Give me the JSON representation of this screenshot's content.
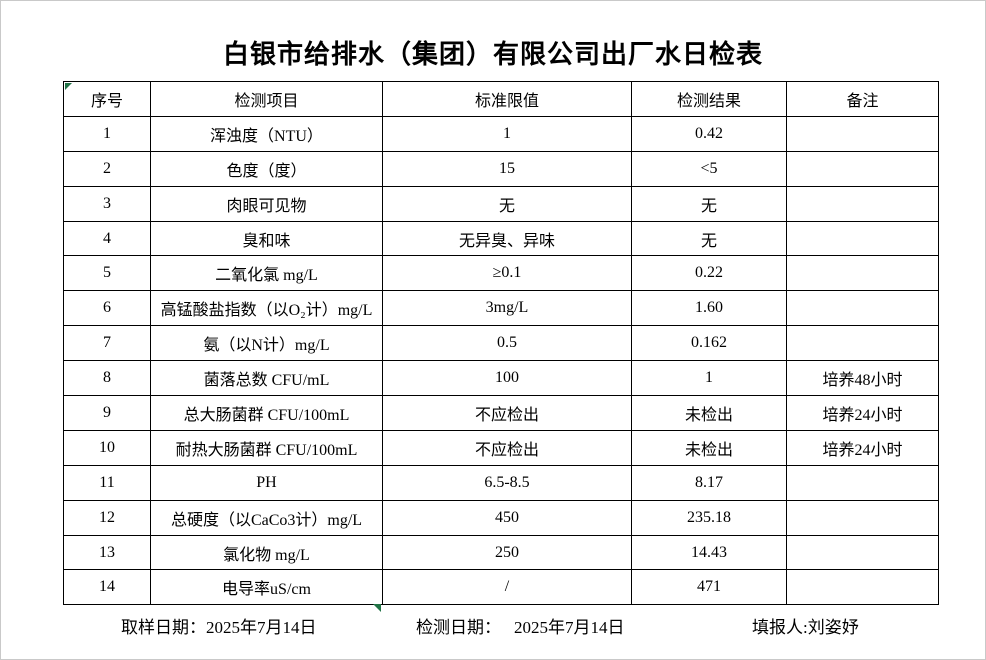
{
  "page": {
    "title": "白银市给排水（集团）有限公司出厂水日检表"
  },
  "colors": {
    "marker_green": "#217346",
    "table_border": "#000000",
    "background": "#ffffff"
  },
  "table": {
    "headers": [
      "序号",
      "检测项目",
      "标准限值",
      "检测结果",
      "备注"
    ],
    "rows": [
      {
        "no": "1",
        "item": "浑浊度（NTU）",
        "limit": "1",
        "result": "0.42",
        "remark": ""
      },
      {
        "no": "2",
        "item": "色度（度）",
        "limit": "15",
        "result": "<5",
        "remark": ""
      },
      {
        "no": "3",
        "item": "肉眼可见物",
        "limit": "无",
        "result": "无",
        "remark": ""
      },
      {
        "no": "4",
        "item": "臭和味",
        "limit": "无异臭、异味",
        "result": "无",
        "remark": ""
      },
      {
        "no": "5",
        "item": "二氧化氯 mg/L",
        "limit": "≥0.1",
        "result": "0.22",
        "remark": ""
      },
      {
        "no": "6",
        "item": "高锰酸盐指数（以O₂计）mg/L",
        "limit": "3mg/L",
        "result": "1.60",
        "remark": ""
      },
      {
        "no": "7",
        "item": "氨（以N计）mg/L",
        "limit": "0.5",
        "result": "0.162",
        "remark": ""
      },
      {
        "no": "8",
        "item": "菌落总数 CFU/mL",
        "limit": "100",
        "result": "1",
        "remark": "培养48小时"
      },
      {
        "no": "9",
        "item": "总大肠菌群 CFU/100mL",
        "limit": "不应检出",
        "result": "未检出",
        "remark": "培养24小时"
      },
      {
        "no": "10",
        "item": "耐热大肠菌群 CFU/100mL",
        "limit": "不应检出",
        "result": "未检出",
        "remark": "培养24小时"
      },
      {
        "no": "11",
        "item": "PH",
        "limit": "6.5-8.5",
        "result": "8.17",
        "remark": ""
      },
      {
        "no": "12",
        "item": "总硬度（以CaCo3计）mg/L",
        "limit": "450",
        "result": "235.18",
        "remark": ""
      },
      {
        "no": "13",
        "item": "氯化物 mg/L",
        "limit": "250",
        "result": "14.43",
        "remark": ""
      },
      {
        "no": "14",
        "item": "电导率uS/cm",
        "limit": "/",
        "result": "471",
        "remark": ""
      }
    ]
  },
  "footer": {
    "sampling_date_label": "取样日期：",
    "sampling_date": "2025年7月14日",
    "test_date_label": "检测日期：",
    "test_date": "2025年7月14日",
    "reporter_label": "填报人:",
    "reporter": "刘姿妤"
  }
}
